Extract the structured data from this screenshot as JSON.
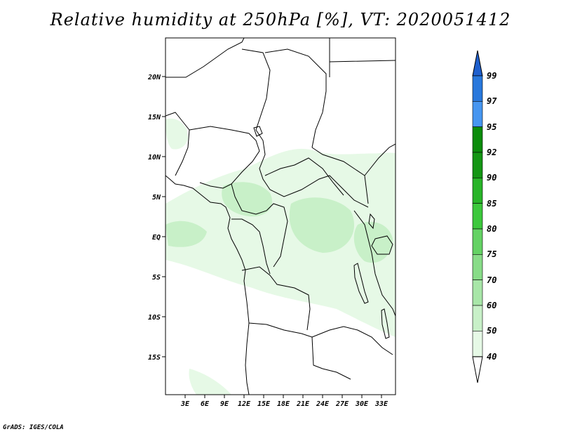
{
  "title": "Relative humidity at 250hPa [%], VT: 2020051412",
  "credit": "GrADS: IGES/COLA",
  "map": {
    "lat_labels": [
      "20N",
      "15N",
      "10N",
      "5N",
      "EQ",
      "5S",
      "10S",
      "15S"
    ],
    "lon_labels": [
      "3E",
      "6E",
      "9E",
      "12E",
      "15E",
      "18E",
      "21E",
      "24E",
      "27E",
      "30E",
      "33E"
    ]
  },
  "colorbar": {
    "labels": [
      "99",
      "97",
      "95",
      "92",
      "90",
      "85",
      "80",
      "75",
      "70",
      "60",
      "50",
      "40"
    ],
    "colors": [
      "#ffffff",
      "#e6f9e6",
      "#c8f0c8",
      "#a8e6a8",
      "#88dc88",
      "#64d264",
      "#3cc83c",
      "#28b428",
      "#149614",
      "#0a8c0a",
      "#4696f0",
      "#2878dc",
      "#1e5fcd"
    ],
    "lower_cap_color": "#ffffff",
    "upper_cap_color": "#1e5fcd"
  }
}
